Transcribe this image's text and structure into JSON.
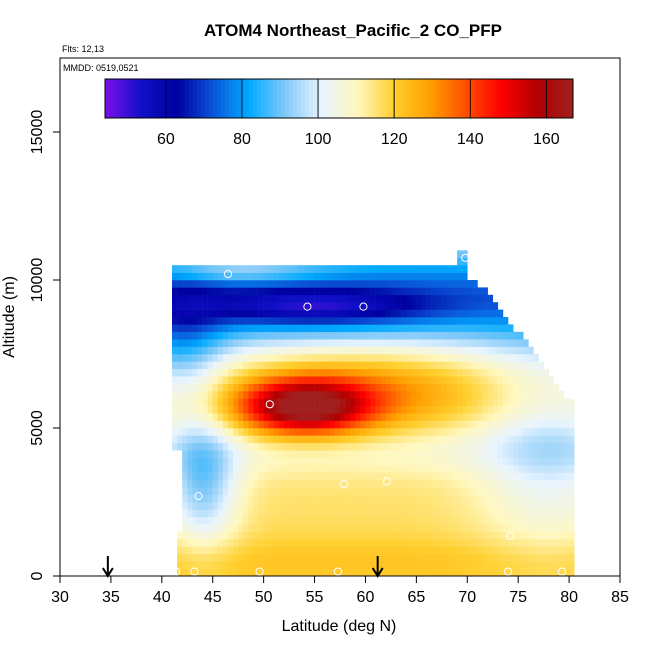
{
  "chart_data": {
    "type": "heatmap",
    "title": "ATOM4 Northeast_Pacific_2 CO_PFP",
    "annotations": [
      "Flts: 12,13",
      "MMDD: 0519,0521"
    ],
    "xlabel": "Latitude (deg N)",
    "ylabel": "Altitude (m)",
    "xlim": [
      30,
      85
    ],
    "ylim": [
      0,
      17500
    ],
    "xticks": [
      "30",
      "35",
      "40",
      "45",
      "50",
      "55",
      "60",
      "65",
      "70",
      "75",
      "80",
      "85"
    ],
    "yticks": [
      "0",
      "5000",
      "10000",
      "15000"
    ],
    "colorbar": {
      "range": [
        44,
        167
      ],
      "ticks": [
        "60",
        "80",
        "100",
        "120",
        "140",
        "160"
      ],
      "colors": [
        "#7a10e8",
        "#1010c8",
        "#0000a0",
        "#0a55d8",
        "#00aaff",
        "#80c8f8",
        "#e8f4ff",
        "#fff8c0",
        "#ffd030",
        "#ffa000",
        "#ff5000",
        "#ff0000",
        "#b00000",
        "#a02020"
      ]
    },
    "arrows_lat": [
      34.7,
      61.2
    ],
    "sample_points": [
      {
        "lat": 41.4,
        "alt": 150
      },
      {
        "lat": 43.2,
        "alt": 150
      },
      {
        "lat": 49.6,
        "alt": 150
      },
      {
        "lat": 57.3,
        "alt": 150
      },
      {
        "lat": 74.0,
        "alt": 150
      },
      {
        "lat": 79.3,
        "alt": 150
      },
      {
        "lat": 43.6,
        "alt": 2700
      },
      {
        "lat": 57.9,
        "alt": 3100
      },
      {
        "lat": 62.1,
        "alt": 3200
      },
      {
        "lat": 74.2,
        "alt": 1350
      },
      {
        "lat": 50.6,
        "alt": 5800
      },
      {
        "lat": 54.3,
        "alt": 9100
      },
      {
        "lat": 59.8,
        "alt": 9100
      },
      {
        "lat": 76.8,
        "alt": 8900
      },
      {
        "lat": 69.8,
        "alt": 10750
      },
      {
        "lat": 46.5,
        "alt": 10200
      },
      {
        "lat": 80.3,
        "alt": 6100
      }
    ],
    "grid": false,
    "legend": "top"
  }
}
